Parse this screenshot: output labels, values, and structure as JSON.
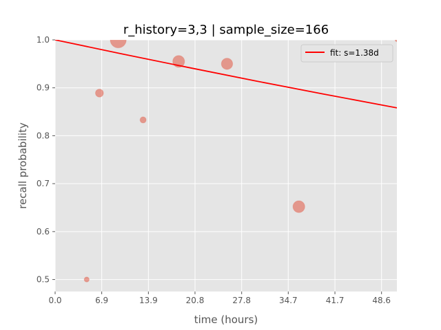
{
  "chart_data": {
    "type": "scatter",
    "title": "r_history=3,3 | sample_size=166",
    "xlabel": "time (hours)",
    "ylabel": "recall probability",
    "xlim": [
      0,
      50.9
    ],
    "ylim": [
      0.475,
      1.0
    ],
    "xticks": [
      "0.0",
      "6.9",
      "13.9",
      "20.8",
      "27.8",
      "34.7",
      "41.7",
      "48.6"
    ],
    "xtick_values": [
      0,
      6.94,
      13.89,
      20.83,
      27.78,
      34.72,
      41.67,
      48.61
    ],
    "yticks": [
      "0.5",
      "0.6",
      "0.7",
      "0.8",
      "0.9",
      "1.0"
    ],
    "ytick_values": [
      0.5,
      0.6,
      0.7,
      0.8,
      0.9,
      1.0
    ],
    "grid": true,
    "legend_position": "top-right",
    "series": [
      {
        "name": "fit: s=1.38d",
        "kind": "line",
        "color": "#ff0000",
        "x": [
          0,
          10,
          20,
          30,
          40,
          50.9
        ],
        "y": [
          1.0,
          0.9706,
          0.942,
          0.9139,
          0.8869,
          0.8582
        ]
      },
      {
        "kind": "scatter",
        "color": "#e24a33",
        "points": [
          {
            "x": 4.7,
            "y": 0.5,
            "size": 2
          },
          {
            "x": 6.6,
            "y": 0.889,
            "size": 5
          },
          {
            "x": 9.4,
            "y": 1.0,
            "size": 20
          },
          {
            "x": 13.1,
            "y": 0.833,
            "size": 3
          },
          {
            "x": 18.4,
            "y": 0.955,
            "size": 11
          },
          {
            "x": 25.6,
            "y": 0.95,
            "size": 10
          },
          {
            "x": 36.3,
            "y": 0.652,
            "size": 11
          },
          {
            "x": 50.9,
            "y": 1.0,
            "size": 1
          }
        ]
      }
    ]
  }
}
